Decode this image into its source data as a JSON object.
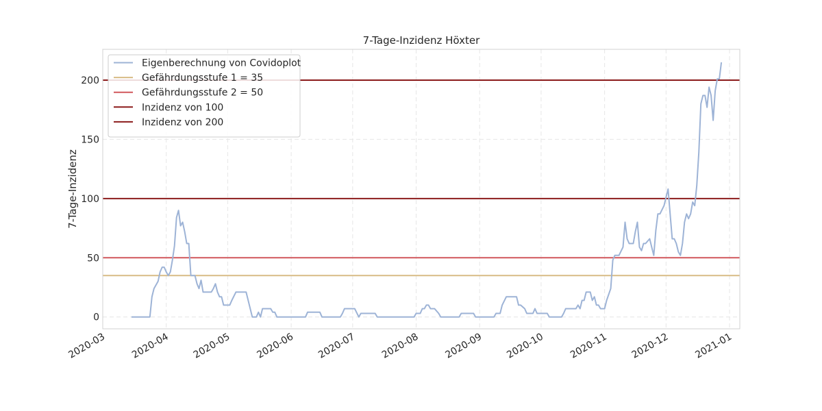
{
  "chart_data": {
    "type": "line",
    "title": "7-Tage-Inzidenz Höxter",
    "xlabel": "",
    "ylabel": "7-Tage-Inzidenz",
    "x_type": "date",
    "xlim": [
      "2020-03-01",
      "2021-01-06"
    ],
    "ylim": [
      -10,
      226
    ],
    "x_ticks": [
      "2020-03-01",
      "2020-04-01",
      "2020-05-01",
      "2020-06-01",
      "2020-07-01",
      "2020-08-01",
      "2020-09-01",
      "2020-10-01",
      "2020-11-01",
      "2020-12-01",
      "2021-01-01"
    ],
    "x_tick_labels": [
      "2020-03",
      "2020-04",
      "2020-05",
      "2020-06",
      "2020-07",
      "2020-08",
      "2020-09",
      "2020-10",
      "2020-11",
      "2020-12",
      "2021-01"
    ],
    "y_ticks": [
      0,
      50,
      100,
      150,
      200
    ],
    "y_tick_labels": [
      "0",
      "50",
      "100",
      "150",
      "200"
    ],
    "grid": true,
    "legend_position": "top-left",
    "series": [
      {
        "name": "Eigenberechnung von Covidoplot",
        "kind": "line",
        "color": "#9db3d6",
        "points": [
          [
            "2020-03-15",
            0
          ],
          [
            "2020-03-24",
            0
          ],
          [
            "2020-03-25",
            17
          ],
          [
            "2020-03-26",
            24
          ],
          [
            "2020-03-28",
            30
          ],
          [
            "2020-03-29",
            38
          ],
          [
            "2020-03-30",
            42
          ],
          [
            "2020-03-31",
            42
          ],
          [
            "2020-04-01",
            38
          ],
          [
            "2020-04-02",
            35
          ],
          [
            "2020-04-03",
            38
          ],
          [
            "2020-04-04",
            48
          ],
          [
            "2020-04-05",
            60
          ],
          [
            "2020-04-06",
            84
          ],
          [
            "2020-04-07",
            90
          ],
          [
            "2020-04-08",
            77
          ],
          [
            "2020-04-09",
            80
          ],
          [
            "2020-04-10",
            72
          ],
          [
            "2020-04-11",
            62
          ],
          [
            "2020-04-12",
            62
          ],
          [
            "2020-04-13",
            35
          ],
          [
            "2020-04-14",
            35
          ],
          [
            "2020-04-15",
            35
          ],
          [
            "2020-04-16",
            28
          ],
          [
            "2020-04-17",
            24
          ],
          [
            "2020-04-18",
            31
          ],
          [
            "2020-04-19",
            21
          ],
          [
            "2020-04-23",
            21
          ],
          [
            "2020-04-24",
            24
          ],
          [
            "2020-04-25",
            28
          ],
          [
            "2020-04-26",
            21
          ],
          [
            "2020-04-27",
            17
          ],
          [
            "2020-04-28",
            17
          ],
          [
            "2020-04-29",
            10
          ],
          [
            "2020-05-02",
            10
          ],
          [
            "2020-05-03",
            14
          ],
          [
            "2020-05-05",
            21
          ],
          [
            "2020-05-10",
            21
          ],
          [
            "2020-05-13",
            0
          ],
          [
            "2020-05-15",
            0
          ],
          [
            "2020-05-16",
            4
          ],
          [
            "2020-05-17",
            0
          ],
          [
            "2020-05-18",
            7
          ],
          [
            "2020-05-22",
            7
          ],
          [
            "2020-05-23",
            4
          ],
          [
            "2020-05-24",
            4
          ],
          [
            "2020-05-25",
            0
          ],
          [
            "2020-06-08",
            0
          ],
          [
            "2020-06-09",
            4
          ],
          [
            "2020-06-15",
            4
          ],
          [
            "2020-06-16",
            0
          ],
          [
            "2020-06-25",
            0
          ],
          [
            "2020-06-26",
            3
          ],
          [
            "2020-06-27",
            7
          ],
          [
            "2020-07-02",
            7
          ],
          [
            "2020-07-04",
            0
          ],
          [
            "2020-07-05",
            3
          ],
          [
            "2020-07-12",
            3
          ],
          [
            "2020-07-13",
            0
          ],
          [
            "2020-07-31",
            0
          ],
          [
            "2020-08-01",
            3
          ],
          [
            "2020-08-03",
            3
          ],
          [
            "2020-08-04",
            7
          ],
          [
            "2020-08-05",
            7
          ],
          [
            "2020-08-06",
            10
          ],
          [
            "2020-08-07",
            10
          ],
          [
            "2020-08-08",
            7
          ],
          [
            "2020-08-10",
            7
          ],
          [
            "2020-08-12",
            3
          ],
          [
            "2020-08-13",
            0
          ],
          [
            "2020-08-22",
            0
          ],
          [
            "2020-08-23",
            3
          ],
          [
            "2020-08-29",
            3
          ],
          [
            "2020-08-30",
            0
          ],
          [
            "2020-09-08",
            0
          ],
          [
            "2020-09-09",
            3
          ],
          [
            "2020-09-11",
            3
          ],
          [
            "2020-09-12",
            10
          ],
          [
            "2020-09-14",
            17
          ],
          [
            "2020-09-19",
            17
          ],
          [
            "2020-09-20",
            10
          ],
          [
            "2020-09-21",
            10
          ],
          [
            "2020-09-23",
            7
          ],
          [
            "2020-09-24",
            3
          ],
          [
            "2020-09-27",
            3
          ],
          [
            "2020-09-28",
            7
          ],
          [
            "2020-09-29",
            3
          ],
          [
            "2020-10-04",
            3
          ],
          [
            "2020-10-05",
            0
          ],
          [
            "2020-10-11",
            0
          ],
          [
            "2020-10-12",
            3
          ],
          [
            "2020-10-13",
            7
          ],
          [
            "2020-10-18",
            7
          ],
          [
            "2020-10-19",
            10
          ],
          [
            "2020-10-20",
            7
          ],
          [
            "2020-10-21",
            14
          ],
          [
            "2020-10-22",
            14
          ],
          [
            "2020-10-23",
            21
          ],
          [
            "2020-10-25",
            21
          ],
          [
            "2020-10-26",
            14
          ],
          [
            "2020-10-27",
            17
          ],
          [
            "2020-10-28",
            10
          ],
          [
            "2020-10-29",
            10
          ],
          [
            "2020-10-30",
            7
          ],
          [
            "2020-11-01",
            7
          ],
          [
            "2020-11-02",
            14
          ],
          [
            "2020-11-04",
            24
          ],
          [
            "2020-11-05",
            48
          ],
          [
            "2020-11-06",
            52
          ],
          [
            "2020-11-08",
            52
          ],
          [
            "2020-11-10",
            59
          ],
          [
            "2020-11-11",
            80
          ],
          [
            "2020-11-12",
            66
          ],
          [
            "2020-11-13",
            62
          ],
          [
            "2020-11-15",
            62
          ],
          [
            "2020-11-16",
            72
          ],
          [
            "2020-11-17",
            80
          ],
          [
            "2020-11-18",
            59
          ],
          [
            "2020-11-19",
            56
          ],
          [
            "2020-11-20",
            62
          ],
          [
            "2020-11-21",
            62
          ],
          [
            "2020-11-23",
            66
          ],
          [
            "2020-11-24",
            59
          ],
          [
            "2020-11-25",
            52
          ],
          [
            "2020-11-26",
            73
          ],
          [
            "2020-11-27",
            87
          ],
          [
            "2020-11-28",
            87
          ],
          [
            "2020-11-30",
            94
          ],
          [
            "2020-12-01",
            101
          ],
          [
            "2020-12-02",
            108
          ],
          [
            "2020-12-03",
            87
          ],
          [
            "2020-12-04",
            66
          ],
          [
            "2020-12-05",
            66
          ],
          [
            "2020-12-06",
            62
          ],
          [
            "2020-12-07",
            55
          ],
          [
            "2020-12-08",
            52
          ],
          [
            "2020-12-09",
            62
          ],
          [
            "2020-12-10",
            80
          ],
          [
            "2020-12-11",
            87
          ],
          [
            "2020-12-12",
            83
          ],
          [
            "2020-12-13",
            87
          ],
          [
            "2020-12-14",
            97
          ],
          [
            "2020-12-15",
            94
          ],
          [
            "2020-12-16",
            111
          ],
          [
            "2020-12-17",
            139
          ],
          [
            "2020-12-18",
            180
          ],
          [
            "2020-12-19",
            187
          ],
          [
            "2020-12-20",
            187
          ],
          [
            "2020-12-21",
            177
          ],
          [
            "2020-12-22",
            194
          ],
          [
            "2020-12-23",
            187
          ],
          [
            "2020-12-24",
            166
          ],
          [
            "2020-12-25",
            191
          ],
          [
            "2020-12-26",
            201
          ],
          [
            "2020-12-27",
            201
          ],
          [
            "2020-12-28",
            215
          ]
        ]
      },
      {
        "name": "Gefährdungsstufe 1 = 35",
        "kind": "hline",
        "y": 35,
        "color": "#d8bb85"
      },
      {
        "name": "Gefährdungsstufe 2 = 50",
        "kind": "hline",
        "y": 50,
        "color": "#d1575c"
      },
      {
        "name": "Inzidenz von 100",
        "kind": "hline",
        "y": 100,
        "color": "#8b1a1a"
      },
      {
        "name": "Inzidenz von 200",
        "kind": "hline",
        "y": 200,
        "color": "#8b1a1a"
      }
    ]
  }
}
